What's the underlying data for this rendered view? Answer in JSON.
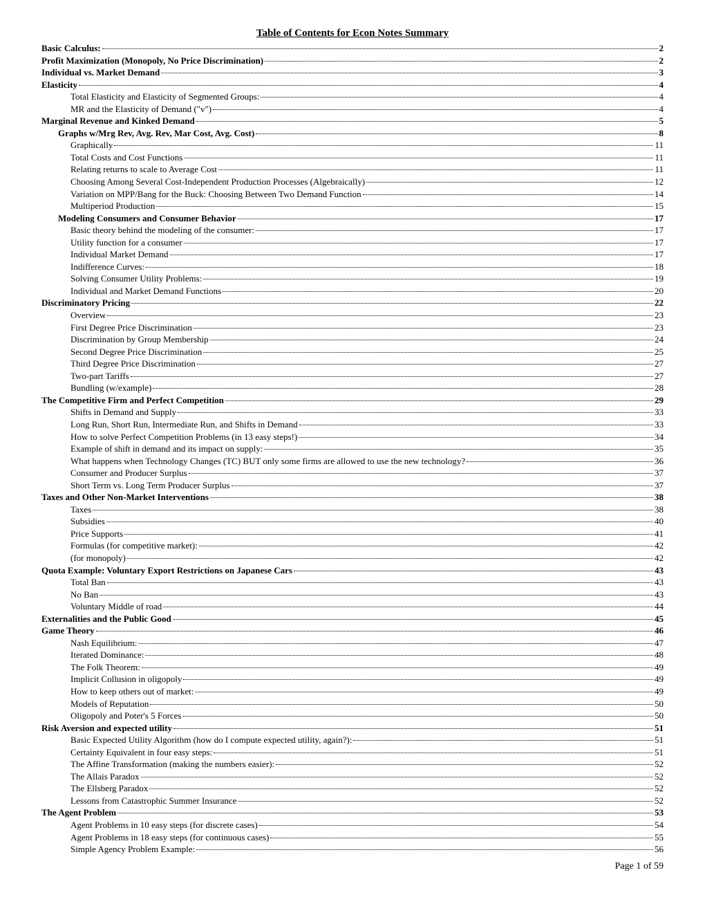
{
  "title": "Table of Contents for Econ Notes Summary",
  "footer": "Page 1 of 59",
  "entries": [
    {
      "label": "Basic Calculus:",
      "page": "2",
      "level": 0
    },
    {
      "label": "Profit Maximization (Monopoly, No Price Discrimination)",
      "page": "2",
      "level": 0
    },
    {
      "label": "Individual vs. Market Demand",
      "page": "3",
      "level": 0
    },
    {
      "label": "Elasticity",
      "page": "4",
      "level": 0
    },
    {
      "label": "Total Elasticity and Elasticity of Segmented Groups:",
      "page": "4",
      "level": 2
    },
    {
      "label": "MR and the Elasticity of Demand (\"v\")",
      "page": "4",
      "level": 2
    },
    {
      "label": "Marginal Revenue and Kinked Demand",
      "page": "5",
      "level": 0
    },
    {
      "label": "Graphs w/Mrg Rev, Avg. Rev, Mar Cost, Avg. Cost)",
      "page": "8",
      "level": 1
    },
    {
      "label": "Graphically",
      "page": "11",
      "level": 2
    },
    {
      "label": "Total Costs and Cost Functions",
      "page": "11",
      "level": 2
    },
    {
      "label": "Relating returns to scale to Average Cost",
      "page": "11",
      "level": 2
    },
    {
      "label": "Choosing Among Several Cost-Independent Production Processes (Algebraically)",
      "page": "12",
      "level": 2
    },
    {
      "label": "Variation on MPP/Bang for the Buck: Choosing Between Two Demand Function",
      "page": "14",
      "level": 2
    },
    {
      "label": "Multiperiod Production",
      "page": "15",
      "level": 2
    },
    {
      "label": "Modeling Consumers and Consumer Behavior",
      "page": "17",
      "level": 1
    },
    {
      "label": "Basic theory behind the modeling of the consumer:",
      "page": "17",
      "level": 2
    },
    {
      "label": "Utility function for a consumer",
      "page": "17",
      "level": 2
    },
    {
      "label": "Individual Market Demand",
      "page": "17",
      "level": 2
    },
    {
      "label": "Indifference Curves:",
      "page": "18",
      "level": 2
    },
    {
      "label": "Solving Consumer Utility Problems:",
      "page": "19",
      "level": 2
    },
    {
      "label": "Individual and Market Demand Functions",
      "page": "20",
      "level": 2
    },
    {
      "label": "Discriminatory Pricing",
      "page": "22",
      "level": 0
    },
    {
      "label": "Overview",
      "page": "23",
      "level": 2
    },
    {
      "label": "First Degree Price Discrimination",
      "page": "23",
      "level": 2
    },
    {
      "label": "Discrimination by Group Membership",
      "page": "24",
      "level": 2
    },
    {
      "label": "Second Degree Price Discrimination",
      "page": "25",
      "level": 2
    },
    {
      "label": "Third Degree Price Discrimination",
      "page": "27",
      "level": 2
    },
    {
      "label": "Two-part Tariffs",
      "page": "27",
      "level": 2
    },
    {
      "label": "Bundling (w/example)",
      "page": "28",
      "level": 2
    },
    {
      "label": "The Competitive Firm and Perfect Competition",
      "page": "29",
      "level": 0
    },
    {
      "label": "Shifts in Demand and Supply",
      "page": "33",
      "level": 2
    },
    {
      "label": "Long Run, Short Run, Intermediate Run, and Shifts in Demand",
      "page": "33",
      "level": 2
    },
    {
      "label": "How to solve Perfect Competition Problems (in 13 easy steps!)",
      "page": "34",
      "level": 2
    },
    {
      "label": "Example of shift in demand and its impact on supply:",
      "page": "35",
      "level": 2
    },
    {
      "label": "What happens when Technology Changes (TC) BUT only some firms are allowed to use the new technology?",
      "page": "36",
      "level": 2
    },
    {
      "label": "Consumer and Producer Surplus",
      "page": "37",
      "level": 2
    },
    {
      "label": "Short Term vs.  Long Term Producer Surplus",
      "page": "37",
      "level": 2
    },
    {
      "label": "Taxes and Other Non-Market Interventions",
      "page": "38",
      "level": 0
    },
    {
      "label": "Taxes",
      "page": "38",
      "level": 2
    },
    {
      "label": "Subsidies",
      "page": "40",
      "level": 2
    },
    {
      "label": "Price Supports",
      "page": "41",
      "level": 2
    },
    {
      "label": "Formulas (for competitive market):",
      "page": "42",
      "level": 2
    },
    {
      "label": "(for monopoly)",
      "page": "42",
      "level": 2
    },
    {
      "label": "Quota Example: Voluntary Export Restrictions on Japanese Cars",
      "page": "43",
      "level": 0
    },
    {
      "label": "Total Ban",
      "page": "43",
      "level": 2
    },
    {
      "label": "No Ban",
      "page": "43",
      "level": 2
    },
    {
      "label": "Voluntary Middle of road",
      "page": "44",
      "level": 2
    },
    {
      "label": "Externalities and the Public Good",
      "page": "45",
      "level": 0
    },
    {
      "label": "Game Theory",
      "page": "46",
      "level": 0
    },
    {
      "label": "Nash Equilibrium:",
      "page": "47",
      "level": 2
    },
    {
      "label": "Iterated Dominance:",
      "page": "48",
      "level": 2
    },
    {
      "label": "The Folk Theorem:",
      "page": "49",
      "level": 2
    },
    {
      "label": "Implicit Collusion in oligopoly",
      "page": "49",
      "level": 2
    },
    {
      "label": "How to keep others out of market:",
      "page": "49",
      "level": 2
    },
    {
      "label": "Models of Reputation",
      "page": "50",
      "level": 2
    },
    {
      "label": "Oligopoly and Poter's 5 Forces",
      "page": "50",
      "level": 2
    },
    {
      "label": "Risk Aversion and expected utility",
      "page": "51",
      "level": 0
    },
    {
      "label": "Basic Expected Utility Algorithm (how do I compute expected utility, again?):",
      "page": "51",
      "level": 2
    },
    {
      "label": "Certainty Equivalent in four easy steps:",
      "page": "51",
      "level": 2
    },
    {
      "label": "The Affine Transformation (making the numbers easier):",
      "page": "52",
      "level": 2
    },
    {
      "label": "The Allais Paradox",
      "page": "52",
      "level": 2
    },
    {
      "label": "The Ellsberg Paradox",
      "page": "52",
      "level": 2
    },
    {
      "label": "Lessons from Catastrophic Summer Insurance",
      "page": "52",
      "level": 2
    },
    {
      "label": "The Agent Problem",
      "page": "53",
      "level": 0
    },
    {
      "label": "Agent Problems in 10 easy steps (for discrete cases)",
      "page": "54",
      "level": 2
    },
    {
      "label": "Agent Problems in 18 easy steps (for continuous cases)",
      "page": "55",
      "level": 2
    },
    {
      "label": "Simple Agency Problem Example:",
      "page": "56",
      "level": 2
    }
  ]
}
